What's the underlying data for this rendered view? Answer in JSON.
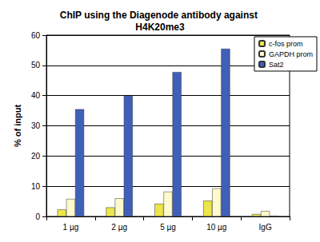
{
  "chart_data": {
    "type": "bar",
    "title": "ChIP using the Diagenode antibody against H4K20me3",
    "y_label": "% of input",
    "categories": [
      "1 µg",
      "2 µg",
      "5 µg",
      "10 µg",
      "IgG"
    ],
    "series": [
      {
        "name": "c-fos prom",
        "color": "#ece648",
        "values": [
          2.3,
          3.0,
          4.2,
          5.2,
          0.8
        ]
      },
      {
        "name": "GAPDH prom",
        "color": "#fffacc",
        "values": [
          5.8,
          6.0,
          8.2,
          9.3,
          1.8
        ]
      },
      {
        "name": "Sat2",
        "color": "#4060b8",
        "values": [
          35.5,
          40.0,
          47.8,
          55.5,
          0.1
        ]
      }
    ],
    "ylim": [
      0,
      60
    ],
    "yticks": [
      0,
      10,
      20,
      30,
      40,
      50,
      60
    ],
    "grid": true,
    "legend": "top-right"
  }
}
